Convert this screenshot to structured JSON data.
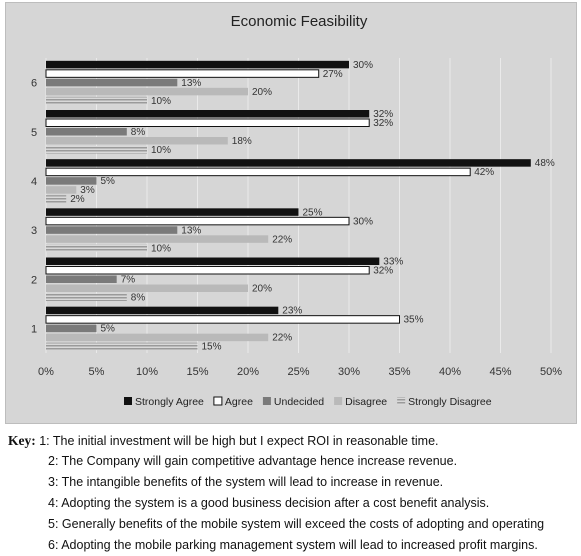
{
  "chart_data": {
    "type": "bar",
    "orientation": "horizontal",
    "title": "Economic Feasibility",
    "categories": [
      "1",
      "2",
      "3",
      "4",
      "5",
      "6"
    ],
    "series": [
      {
        "name": "Strongly Agree",
        "values": [
          23,
          33,
          25,
          48,
          32,
          30
        ],
        "color": "#111111"
      },
      {
        "name": "Agree",
        "values": [
          35,
          32,
          30,
          42,
          32,
          27
        ],
        "color": "#ffffff"
      },
      {
        "name": "Undecided",
        "values": [
          5,
          7,
          13,
          5,
          8,
          13
        ],
        "color": "#7a7a7a"
      },
      {
        "name": "Disagree",
        "values": [
          22,
          20,
          22,
          3,
          18,
          20
        ],
        "color": "#b9b9b9"
      },
      {
        "name": "Strongly Disagree",
        "values": [
          15,
          8,
          10,
          2,
          10,
          10
        ],
        "color": "#b0b0b0"
      }
    ],
    "data_labels": [
      [
        "23%",
        "35%",
        "5%",
        "22%",
        "15%"
      ],
      [
        "33%",
        "32%",
        "7%",
        "20%",
        "8%"
      ],
      [
        "25%",
        "30%",
        "13%",
        "22%",
        "10%"
      ],
      [
        "48%",
        "42%",
        "5%",
        "3%",
        "2%"
      ],
      [
        "32%",
        "32%",
        "8%",
        "18%",
        "10%"
      ],
      [
        "30%",
        "27%",
        "13%",
        "20%",
        "10%"
      ]
    ],
    "xlim": [
      0,
      50
    ],
    "x_ticks": [
      "0%",
      "5%",
      "10%",
      "15%",
      "20%",
      "25%",
      "30%",
      "35%",
      "40%",
      "45%",
      "50%"
    ],
    "grid": true,
    "legend_position": "bottom"
  },
  "key": {
    "label": "Key:",
    "items": [
      "1: The initial investment will be high but I expect ROI in reasonable time.",
      "2: The Company will gain competitive advantage hence increase revenue.",
      "3: The intangible benefits of the system will lead to increase in revenue.",
      "4: Adopting the system is a good business decision after a cost benefit analysis.",
      "5: Generally benefits of the mobile system will exceed the costs of adopting and operating",
      "6: Adopting the mobile parking management system will lead to increased profit margins."
    ]
  }
}
